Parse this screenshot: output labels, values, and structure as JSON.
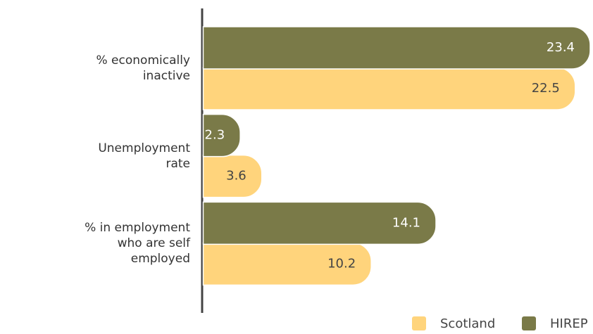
{
  "chart_data": {
    "type": "bar",
    "orientation": "horizontal",
    "categories": [
      "% economically inactive",
      "Unemployment rate",
      "% in employment who are self employed"
    ],
    "series": [
      {
        "name": "HIREP",
        "color": "#7a7a48",
        "values": [
          23.4,
          2.3,
          14.1
        ]
      },
      {
        "name": "Scotland",
        "color": "#ffd47c",
        "values": [
          22.5,
          3.6,
          10.2
        ]
      }
    ]
  }
}
